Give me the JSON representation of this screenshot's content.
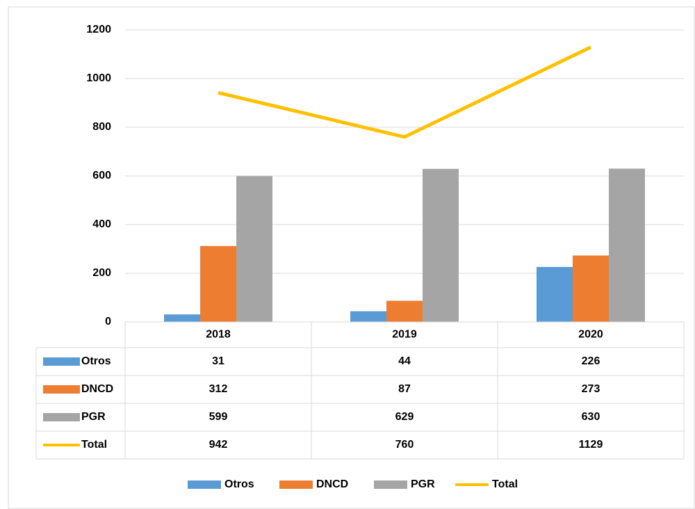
{
  "chart_data": {
    "type": "bar",
    "categories": [
      "2018",
      "2019",
      "2020"
    ],
    "series": [
      {
        "name": "Otros",
        "color": "#5b9bd5",
        "values": [
          31,
          44,
          226
        ]
      },
      {
        "name": "DNCD",
        "color": "#ed7d31",
        "values": [
          312,
          87,
          273
        ]
      },
      {
        "name": "PGR",
        "color": "#a5a5a5",
        "values": [
          599,
          629,
          630
        ]
      },
      {
        "name": "Total",
        "color": "#ffc000",
        "type": "line",
        "values": [
          942,
          760,
          1129
        ]
      }
    ],
    "ylim": [
      0,
      1200
    ],
    "yticks": [
      0,
      200,
      400,
      600,
      800,
      1000,
      1200
    ],
    "grid": true,
    "legend": "bottom"
  }
}
